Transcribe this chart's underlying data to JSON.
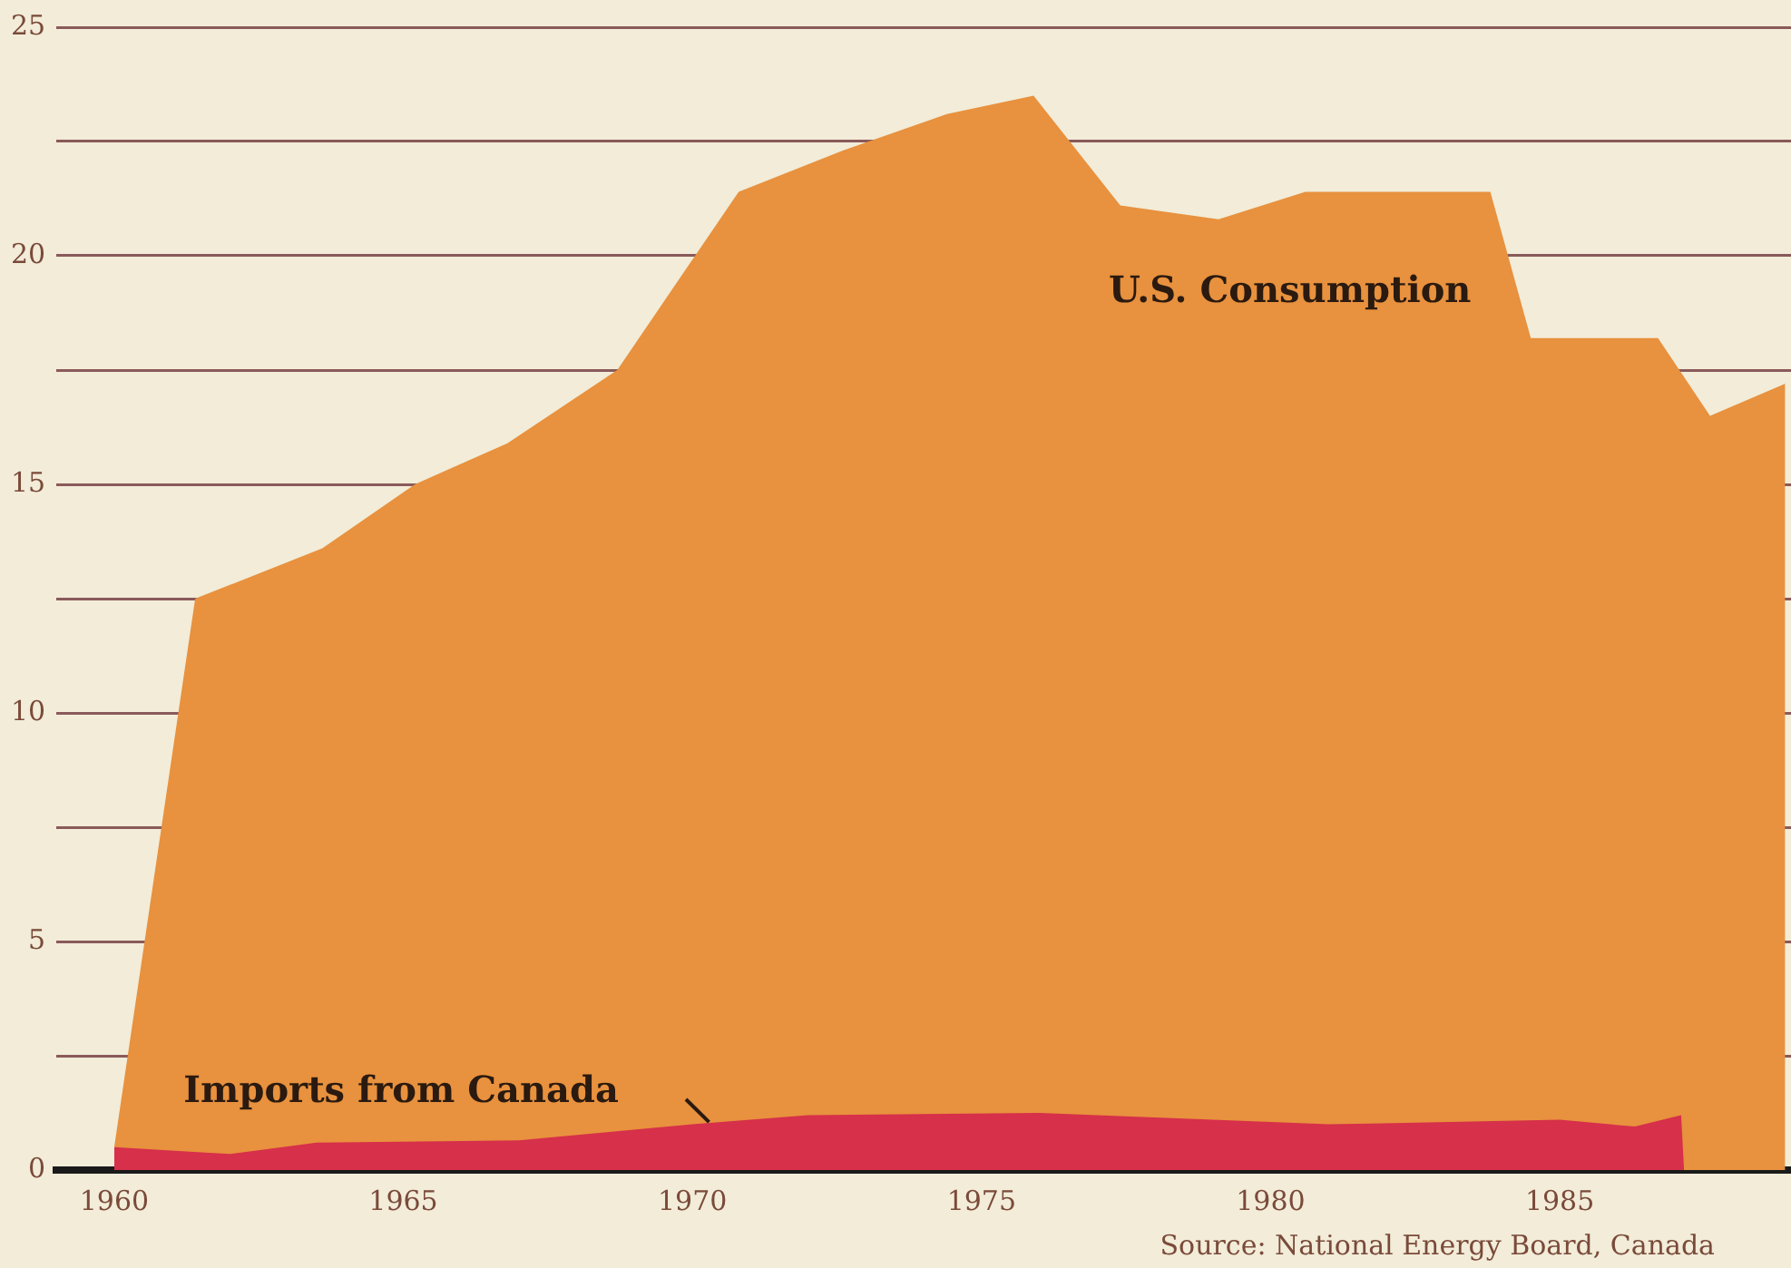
{
  "chart_data": {
    "type": "area",
    "legend": false,
    "grid": "y",
    "marker": "none",
    "xlim": [
      1959,
      1989
    ],
    "xticks": [
      1960,
      1965,
      1970,
      1975,
      1980,
      1985
    ],
    "ylim": [
      0,
      25
    ],
    "yticks": [
      0,
      {
        "value": 2.5,
        "label": null
      },
      5,
      {
        "value": 7.5,
        "label": null
      },
      10,
      {
        "value": 12.5,
        "label": null
      },
      15,
      {
        "value": 17.5,
        "label": null
      },
      20,
      {
        "value": 22.5,
        "label": null
      },
      25
    ],
    "series": [
      {
        "name": "U.S. Consumption",
        "color": "#e8913e",
        "x": [
          1960,
          1961.4,
          1963.6,
          1965.2,
          1966.8,
          1968.7,
          1970.8,
          1972.6,
          1974.4,
          1975.9,
          1977.4,
          1979.1,
          1980.6,
          1983.8,
          1984.5,
          1986.7,
          1987.6,
          1988.9
        ],
        "values": [
          0.5,
          12.5,
          13.6,
          15.0,
          15.9,
          17.5,
          21.4,
          22.3,
          23.1,
          23.5,
          21.1,
          20.8,
          21.4,
          21.4,
          18.2,
          18.2,
          16.5,
          17.2
        ]
      },
      {
        "name": "Imports from Canada",
        "color": "#d6304a",
        "x": [
          1960,
          1962,
          1963.5,
          1967,
          1970,
          1972,
          1976,
          1978,
          1981,
          1985,
          1986.3,
          1987.1,
          1987.15
        ],
        "values": [
          0.5,
          0.35,
          0.6,
          0.65,
          1.0,
          1.2,
          1.25,
          1.15,
          1.0,
          1.1,
          0.95,
          1.2,
          0
        ]
      }
    ],
    "annotations": [
      "Source: National Energy Board, Canada"
    ]
  }
}
